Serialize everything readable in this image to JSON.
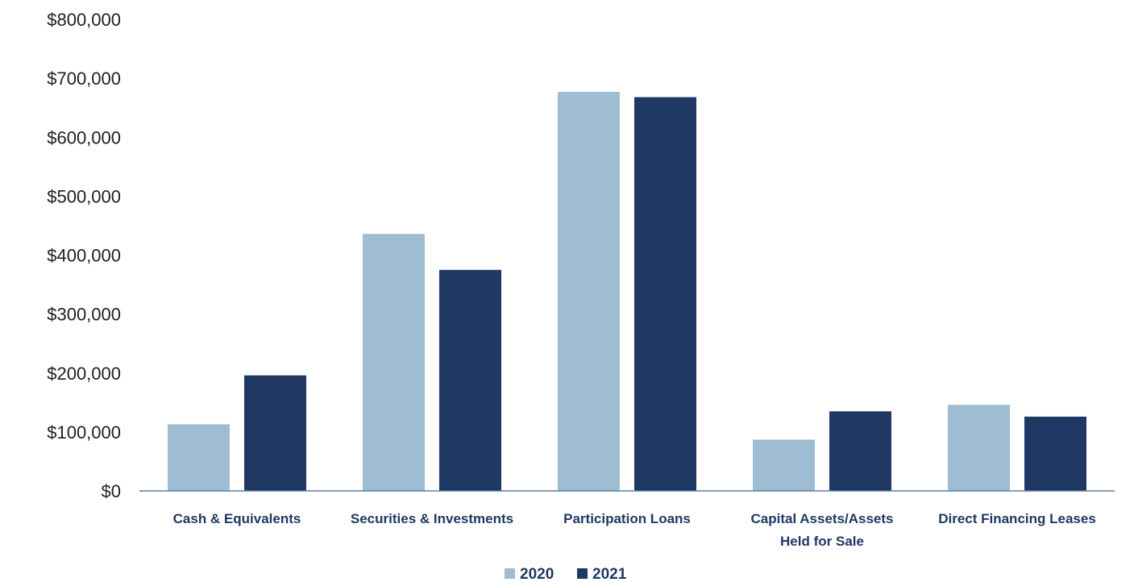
{
  "chart_data": {
    "type": "bar",
    "categories": [
      [
        "Cash & Equivalents"
      ],
      [
        "Securities & Investments"
      ],
      [
        "Participation Loans"
      ],
      [
        "Capital Assets/Assets",
        "Held for Sale"
      ],
      [
        "Direct Financing Leases"
      ]
    ],
    "series": [
      {
        "name": "2020",
        "color": "#9fbdd2",
        "values": [
          113000,
          436000,
          677000,
          87000,
          146000
        ]
      },
      {
        "name": "2021",
        "color": "#1f3864",
        "values": [
          196000,
          375000,
          668000,
          135000,
          126000
        ]
      }
    ],
    "ylim": [
      0,
      800000
    ],
    "yticks": [
      "$0",
      "$100,000",
      "$200,000",
      "$300,000",
      "$400,000",
      "$500,000",
      "$600,000",
      "$700,000",
      "$800,000"
    ],
    "grid": false,
    "legend_position": "bottom-center"
  }
}
